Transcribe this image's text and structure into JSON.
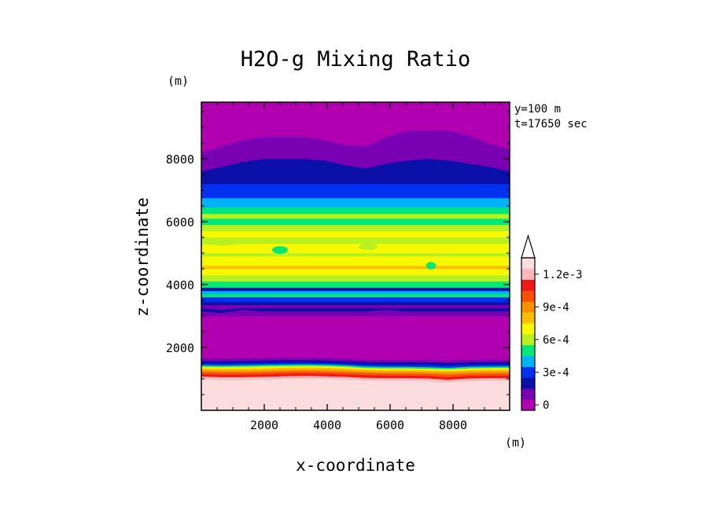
{
  "chart_data": {
    "type": "heatmap",
    "title": "H2O-g Mixing Ratio",
    "xlabel": "x-coordinate",
    "ylabel": "z-coordinate",
    "x_unit": "(m)",
    "y_unit": "(m)",
    "annotations": [
      "y=100 m",
      "t=17650 sec"
    ],
    "xlim": [
      0,
      9800
    ],
    "ylim": [
      0,
      9800
    ],
    "x_ticks": [
      2000,
      4000,
      6000,
      8000
    ],
    "y_ticks": [
      2000,
      4000,
      6000,
      8000
    ],
    "colorbar": {
      "levels": [
        0,
        0.0001,
        0.0002,
        0.0003,
        0.0004,
        0.0005,
        0.0006,
        0.0007,
        0.0008,
        0.0009,
        0.001,
        0.0011,
        0.0012
      ],
      "colors": [
        "#b000b0",
        "#7a00b4",
        "#0a10a8",
        "#0030f0",
        "#00b4f8",
        "#00e878",
        "#b8f020",
        "#f8f800",
        "#f8c000",
        "#f89000",
        "#f85000",
        "#f01818",
        "#fcb8b8",
        "#fcdcdc"
      ],
      "tick_labels": [
        {
          "value": 0,
          "label": "0"
        },
        {
          "value": 0.0003,
          "label": "3e-4"
        },
        {
          "value": 0.0006,
          "label": "6e-4"
        },
        {
          "value": 0.0009,
          "label": "9e-4"
        },
        {
          "value": 0.0012,
          "label": "1.2e-3"
        }
      ],
      "extend": "max"
    },
    "layers": [
      {
        "level": 13,
        "top": [
          1000,
          980,
          980,
          990,
          1010,
          1020,
          1010,
          990,
          960,
          950,
          950,
          940,
          900,
          940,
          950,
          950
        ]
      },
      {
        "level": 12,
        "top": [
          1080,
          1060,
          1060,
          1070,
          1090,
          1100,
          1090,
          1070,
          1040,
          1030,
          1030,
          1020,
          980,
          1020,
          1030,
          1030
        ]
      },
      {
        "level": 11,
        "top": [
          1160,
          1140,
          1140,
          1150,
          1170,
          1180,
          1170,
          1150,
          1120,
          1110,
          1110,
          1100,
          1060,
          1100,
          1110,
          1110
        ]
      },
      {
        "level": 10,
        "top": [
          1230,
          1210,
          1210,
          1220,
          1240,
          1250,
          1240,
          1220,
          1190,
          1180,
          1180,
          1170,
          1140,
          1170,
          1180,
          1180
        ]
      },
      {
        "level": 9,
        "top": [
          1290,
          1270,
          1270,
          1280,
          1300,
          1310,
          1300,
          1280,
          1250,
          1240,
          1240,
          1230,
          1210,
          1240,
          1250,
          1250
        ]
      },
      {
        "level": 8,
        "top": [
          1340,
          1330,
          1330,
          1340,
          1360,
          1370,
          1360,
          1340,
          1300,
          1290,
          1290,
          1280,
          1260,
          1290,
          1300,
          1300
        ]
      },
      {
        "level": 7,
        "top": [
          1390,
          1380,
          1390,
          1400,
          1410,
          1420,
          1410,
          1390,
          1350,
          1340,
          1340,
          1330,
          1310,
          1340,
          1350,
          1350
        ]
      },
      {
        "level": 5,
        "top": [
          1440,
          1430,
          1440,
          1450,
          1460,
          1470,
          1460,
          1440,
          1400,
          1390,
          1390,
          1380,
          1360,
          1390,
          1400,
          1400
        ]
      },
      {
        "level": 3,
        "top": [
          1500,
          1490,
          1500,
          1510,
          1520,
          1520,
          1510,
          1490,
          1460,
          1450,
          1450,
          1450,
          1430,
          1450,
          1460,
          1460
        ]
      },
      {
        "level": 2,
        "top": [
          1580,
          1570,
          1580,
          1590,
          1600,
          1600,
          1590,
          1570,
          1540,
          1530,
          1530,
          1530,
          1510,
          1530,
          1540,
          1540
        ]
      },
      {
        "level": 1,
        "top": [
          1660,
          1650,
          1660,
          1670,
          1680,
          1680,
          1670,
          1650,
          1620,
          1610,
          1610,
          1610,
          1590,
          1610,
          1620,
          1620
        ]
      },
      {
        "level": 0,
        "top": [
          3000,
          3000,
          3000,
          3000,
          3000,
          3000,
          3000,
          3000,
          3000,
          3000,
          3000,
          3000,
          3000,
          3000,
          3000,
          3000
        ]
      },
      {
        "level": 1,
        "top": [
          3150,
          3100,
          3200,
          3150,
          3150,
          3150,
          3150,
          3150,
          3150,
          3200,
          3150,
          3150,
          3150,
          3150,
          3150,
          3150
        ]
      },
      {
        "level": 2,
        "top": [
          3250,
          3200,
          3250,
          3250,
          3250,
          3250,
          3250,
          3250,
          3250,
          3250,
          3250,
          3250,
          3250,
          3250,
          3250,
          3250
        ]
      },
      {
        "level": 1,
        "top": [
          3350,
          3350,
          3350,
          3350,
          3350,
          3350,
          3350,
          3350,
          3350,
          3350,
          3350,
          3350,
          3350,
          3350,
          3350,
          3350
        ]
      },
      {
        "level": 2,
        "top": [
          3450,
          3450,
          3450,
          3450,
          3450,
          3450,
          3450,
          3450,
          3450,
          3450,
          3450,
          3450,
          3450,
          3450,
          3450,
          3450
        ]
      },
      {
        "level": 3,
        "top": [
          3600,
          3600,
          3600,
          3600,
          3600,
          3600,
          3600,
          3600,
          3600,
          3600,
          3600,
          3600,
          3600,
          3600,
          3600,
          3600
        ]
      },
      {
        "level": 5,
        "top": [
          3700,
          3700,
          3700,
          3700,
          3700,
          3700,
          3700,
          3700,
          3700,
          3700,
          3700,
          3700,
          3700,
          3700,
          3700,
          3700
        ]
      },
      {
        "level": 4,
        "top": [
          3800,
          3800,
          3800,
          3800,
          3800,
          3800,
          3800,
          3800,
          3800,
          3800,
          3800,
          3800,
          3800,
          3800,
          3800,
          3800
        ]
      },
      {
        "level": 2,
        "top": [
          3900,
          3900,
          3900,
          3900,
          3900,
          3900,
          3900,
          3900,
          3900,
          3900,
          3900,
          3900,
          3900,
          3900,
          3900,
          3900
        ]
      },
      {
        "level": 5,
        "top": [
          4100,
          4100,
          4100,
          4100,
          4100,
          4100,
          4100,
          4100,
          4100,
          4100,
          4100,
          4100,
          4100,
          4100,
          4100,
          4100
        ]
      },
      {
        "level": 6,
        "top": [
          4300,
          4300,
          4300,
          4300,
          4300,
          4300,
          4300,
          4300,
          4300,
          4300,
          4300,
          4300,
          4300,
          4300,
          4300,
          4300
        ]
      },
      {
        "level": 7,
        "top": [
          4500,
          4500,
          4500,
          4500,
          4500,
          4500,
          4500,
          4500,
          4500,
          4500,
          4500,
          4500,
          4500,
          4500,
          4500,
          4500
        ]
      },
      {
        "level": 8,
        "top": [
          4600,
          4600,
          4600,
          4600,
          4600,
          4600,
          4600,
          4600,
          4600,
          4600,
          4600,
          4600,
          4600,
          4600,
          4600,
          4600
        ]
      },
      {
        "level": 7,
        "top": [
          4900,
          4900,
          4900,
          4900,
          4900,
          4900,
          4900,
          4900,
          4900,
          4900,
          4900,
          4900,
          4900,
          4900,
          4900,
          4900
        ]
      },
      {
        "level": 6,
        "top": [
          5000,
          5000,
          5000,
          5000,
          5000,
          5000,
          5000,
          5000,
          5000,
          5000,
          5000,
          5000,
          5000,
          5000,
          5000,
          5000
        ]
      },
      {
        "level": 7,
        "top": [
          5300,
          5250,
          5300,
          5300,
          5300,
          5300,
          5300,
          5300,
          5300,
          5300,
          5300,
          5300,
          5300,
          5300,
          5300,
          5300
        ]
      },
      {
        "level": 6,
        "top": [
          5500,
          5500,
          5500,
          5500,
          5500,
          5500,
          5500,
          5500,
          5500,
          5500,
          5500,
          5500,
          5500,
          5500,
          5500,
          5500
        ]
      },
      {
        "level": 7,
        "top": [
          5700,
          5700,
          5700,
          5700,
          5700,
          5700,
          5700,
          5700,
          5700,
          5700,
          5700,
          5700,
          5700,
          5700,
          5700,
          5700
        ]
      },
      {
        "level": 6,
        "top": [
          5900,
          5900,
          5900,
          5900,
          5900,
          5900,
          5900,
          5900,
          5900,
          5900,
          5900,
          5900,
          5900,
          5900,
          5900,
          5900
        ]
      },
      {
        "level": 5,
        "top": [
          6100,
          6100,
          6100,
          6100,
          6100,
          6100,
          6100,
          6100,
          6100,
          6100,
          6100,
          6100,
          6100,
          6100,
          6100,
          6100
        ]
      },
      {
        "level": 6,
        "top": [
          6250,
          6250,
          6250,
          6250,
          6250,
          6250,
          6250,
          6250,
          6250,
          6250,
          6250,
          6250,
          6250,
          6250,
          6250,
          6250
        ]
      },
      {
        "level": 5,
        "top": [
          6450,
          6450,
          6450,
          6450,
          6450,
          6450,
          6450,
          6450,
          6450,
          6450,
          6450,
          6450,
          6450,
          6450,
          6450,
          6450
        ]
      },
      {
        "level": 4,
        "top": [
          6750,
          6750,
          6750,
          6750,
          6750,
          6750,
          6750,
          6750,
          6750,
          6750,
          6750,
          6750,
          6750,
          6750,
          6750,
          6750
        ]
      },
      {
        "level": 3,
        "top": [
          7200,
          7200,
          7200,
          7200,
          7200,
          7200,
          7200,
          7200,
          7200,
          7200,
          7200,
          7200,
          7200,
          7200,
          7200,
          7200
        ]
      },
      {
        "level": 2,
        "top": [
          7600,
          7750,
          7900,
          8000,
          8000,
          8000,
          7950,
          7800,
          7700,
          7850,
          7950,
          8000,
          7950,
          7850,
          7750,
          7600
        ]
      },
      {
        "level": 1,
        "top": [
          8200,
          8400,
          8600,
          8700,
          8700,
          8700,
          8600,
          8450,
          8400,
          8700,
          8900,
          8900,
          8900,
          8750,
          8500,
          8300
        ]
      },
      {
        "level": 0,
        "top": [
          9800,
          9800,
          9800,
          9800,
          9800,
          9800,
          9800,
          9800,
          9800,
          9800,
          9800,
          9800,
          9800,
          9800,
          9800,
          9800
        ]
      }
    ],
    "blobs": [
      {
        "level": 5,
        "x": 7300,
        "z": 4600,
        "rx": 150,
        "rz": 120
      },
      {
        "level": 5,
        "x": 2500,
        "z": 5100,
        "rx": 250,
        "rz": 120
      },
      {
        "level": 6,
        "x": 5300,
        "z": 5200,
        "rx": 300,
        "rz": 100
      }
    ]
  }
}
